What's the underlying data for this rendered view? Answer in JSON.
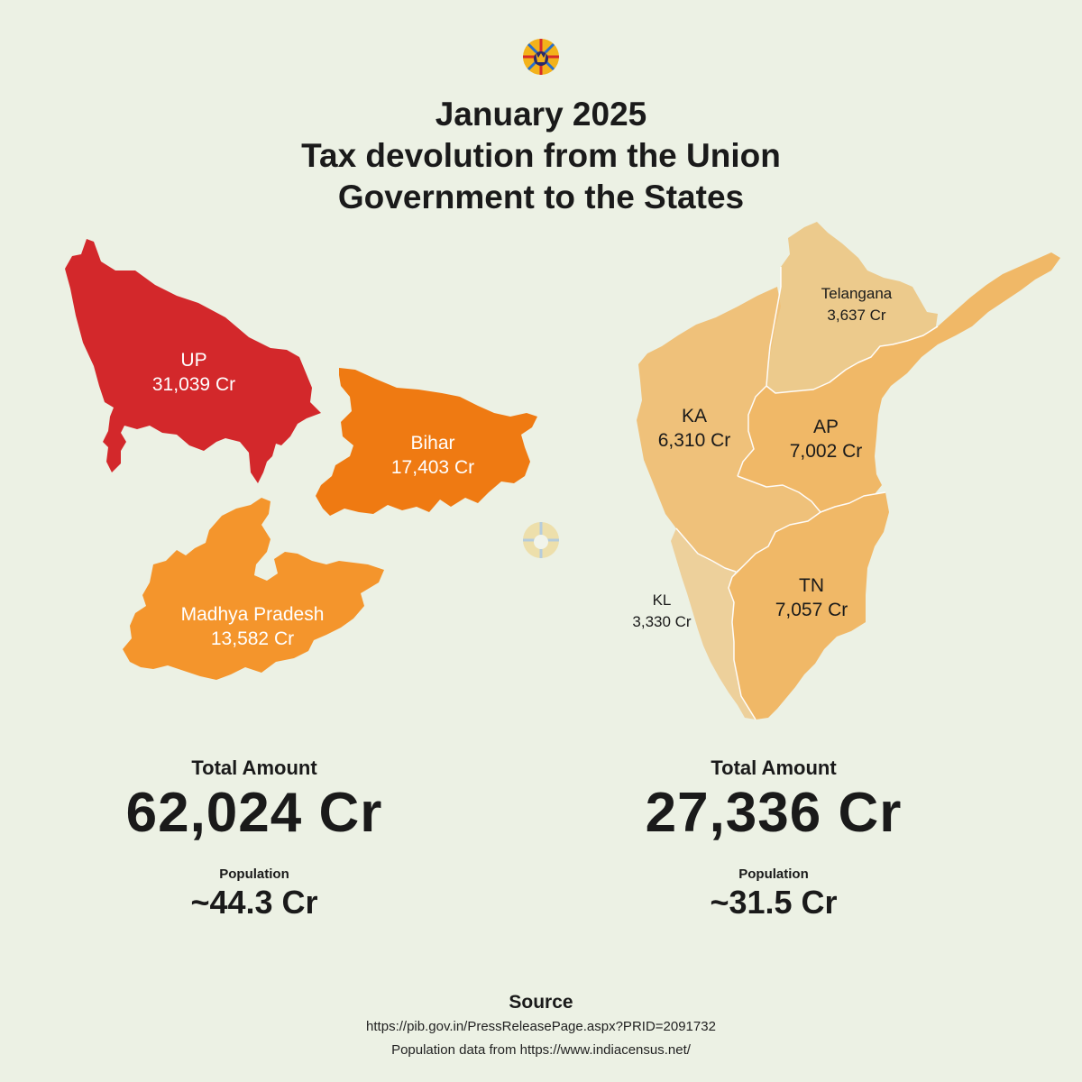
{
  "title": {
    "line1": "January 2025",
    "line2": "Tax devolution from the Union",
    "line3": "Government to the States"
  },
  "colors": {
    "background": "#ecf1e4",
    "up": "#d3282b",
    "bihar": "#ef7a12",
    "madhya_pradesh": "#f4952c",
    "telangana": "#ecca8c",
    "karnataka": "#efc17a",
    "andhra_pradesh": "#f0b867",
    "tamil_nadu": "#f0b867",
    "kerala": "#edd09b"
  },
  "icons": {
    "logo": "sunburst-logo-icon",
    "watermark": "sunburst-watermark-icon"
  },
  "left_group": {
    "states": {
      "up": {
        "name": "UP",
        "amount": "31,039 Cr"
      },
      "bihar": {
        "name": "Bihar",
        "amount": "17,403 Cr"
      },
      "mp": {
        "name": "Madhya Pradesh",
        "amount": "13,582 Cr"
      }
    },
    "total_caption": "Total Amount",
    "total_value": "62,024 Cr",
    "population_caption": "Population",
    "population_value": "~44.3 Cr"
  },
  "right_group": {
    "states": {
      "telangana": {
        "name": "Telangana",
        "amount": "3,637 Cr"
      },
      "ka": {
        "name": "KA",
        "amount": "6,310 Cr"
      },
      "ap": {
        "name": "AP",
        "amount": "7,002 Cr"
      },
      "tn": {
        "name": "TN",
        "amount": "7,057 Cr"
      },
      "kl": {
        "name": "KL",
        "amount": "3,330 Cr"
      }
    },
    "total_caption": "Total Amount",
    "total_value": "27,336 Cr",
    "population_caption": "Population",
    "population_value": "~31.5 Cr"
  },
  "source": {
    "heading": "Source",
    "line1": "https://pib.gov.in/PressReleasePage.aspx?PRID=2091732",
    "line2": "Population data from https://www.indiacensus.net/"
  }
}
